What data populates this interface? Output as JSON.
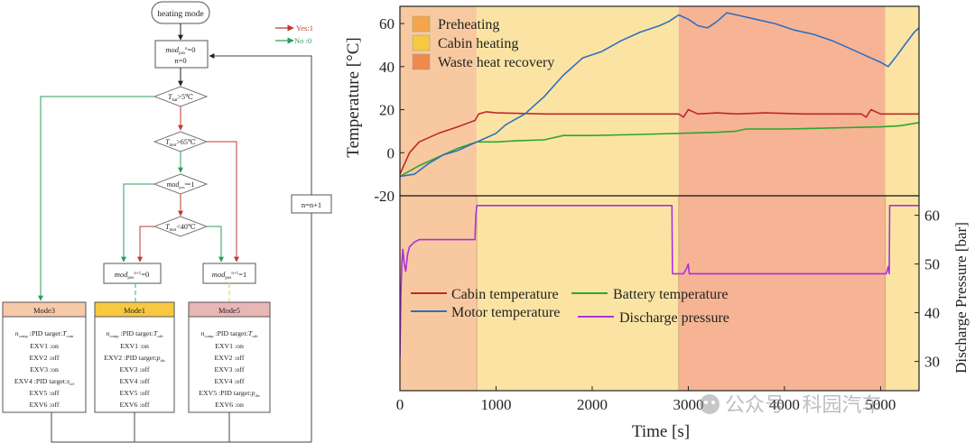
{
  "flowchart": {
    "start": "heating mode",
    "legend": {
      "yes": "Yes:1",
      "no": "No :0",
      "yes_color": "#c0392b",
      "no_color": "#2e9e5b"
    },
    "init": {
      "line1_var": "mod",
      "line1_sub": "pos",
      "line1_sup": "n",
      "line1_val": "=0",
      "line2": "n=0"
    },
    "loop_label": "n=n+1",
    "decisions": {
      "d1": {
        "var": "T",
        "sub": "bat",
        "cond": ">5℃"
      },
      "d2": {
        "var": "T",
        "sub": "mot",
        "cond": ">65℃"
      },
      "d3": {
        "var": "mod",
        "sub": "pos",
        "sup": "n",
        "cond": "=1"
      },
      "d4": {
        "var": "T",
        "sub": "mot",
        "cond": "<40℃"
      }
    },
    "assign0": {
      "var": "mod",
      "sub": "pos",
      "sup": "n+1",
      "val": "=0"
    },
    "assign1": {
      "var": "mod",
      "sub": "pos",
      "sup": "n+1",
      "val": "=1"
    },
    "modes": [
      {
        "title": "Mode3",
        "color": "#f6c9a8",
        "line1": {
          "pre": "n",
          "presub": "comp",
          "text": " :PID target:",
          "t": "T",
          "tsub": "com"
        },
        "rows": [
          "EXV1 :on",
          "EXV2 :off",
          "EXV3 :on"
        ],
        "row4": {
          "text": "EXV4 :PID target:",
          "v": "s",
          "vsub": "ref"
        },
        "rows2": [
          "EXV5 :off",
          "EXV6 :off"
        ]
      },
      {
        "title": "Mode1",
        "color": "#f7c840",
        "line1": {
          "pre": "n",
          "presub": "comp",
          "text": " :PID target:",
          "t": "T",
          "tsub": "cab"
        },
        "rows": [
          "EXV1 :on"
        ],
        "row2": {
          "text": "EXV2 :PID target:",
          "v": "p",
          "vsub": "dis"
        },
        "rows2": [
          "EXV3 :off",
          "EXV4 :off",
          "EXV5 :off",
          "EXV6 :off"
        ]
      },
      {
        "title": "Mode5",
        "color": "#e9b6b6",
        "line1": {
          "pre": "n",
          "presub": "comp",
          "text": " :PID target:",
          "t": "T",
          "tsub": "cab"
        },
        "rows": [
          "EXV1 :on",
          "EXV2 :off",
          "EXV3 :off",
          "EXV4 :off"
        ],
        "row5": {
          "text": "EXV5 :PID target:",
          "v": "p",
          "vsub": "dis"
        },
        "rows2": [
          "EXV6 :on"
        ]
      }
    ]
  },
  "chart_data": {
    "type": "line",
    "xlabel": "Time [s]",
    "ylabel_top": "Temperature [°C]",
    "ylabel_bottom": "Discharge Pressure [bar]",
    "xlim": [
      0,
      5400
    ],
    "x_ticks": [
      0,
      1000,
      2000,
      3000,
      4000,
      5000
    ],
    "top_ylim": [
      -20,
      68
    ],
    "top_ticks": [
      -20,
      0,
      20,
      40,
      60
    ],
    "bottom_ylim": [
      24,
      64
    ],
    "bottom_ticks": [
      30,
      40,
      50,
      60
    ],
    "phases": [
      {
        "name": "Preheating",
        "start": 0,
        "end": 800,
        "color": "#f8c9a0"
      },
      {
        "name": "Cabin heating",
        "start": 800,
        "end": 2900,
        "color": "#fbe4a3"
      },
      {
        "name": "Waste heat recovery",
        "start": 2900,
        "end": 5050,
        "color": "#f6b494"
      },
      {
        "name": "Cabin heating",
        "start": 5050,
        "end": 5400,
        "color": "#fbe4a3"
      }
    ],
    "legend_top": [
      {
        "label": "Preheating",
        "color": "#f6a54a"
      },
      {
        "label": "Cabin heating",
        "color": "#f7c840"
      },
      {
        "label": "Waste heat recovery",
        "color": "#f08a4b"
      }
    ],
    "series": [
      {
        "name": "Cabin temperature",
        "color": "#c0272d",
        "panel": "top",
        "x": [
          0,
          100,
          200,
          400,
          600,
          780,
          820,
          900,
          1000,
          1500,
          2000,
          2500,
          2900,
          2950,
          3000,
          3100,
          3300,
          3500,
          3800,
          4200,
          4600,
          4800,
          4850,
          4900,
          5000,
          5100,
          5400
        ],
        "y": [
          -10,
          0,
          5,
          9,
          12,
          15,
          18,
          19,
          18.5,
          18,
          18,
          18,
          18,
          16.5,
          20,
          18,
          18.5,
          18,
          18.5,
          18,
          18,
          18,
          16.5,
          20,
          18,
          18,
          18
        ]
      },
      {
        "name": "Battery temperature",
        "color": "#2fa62f",
        "panel": "top",
        "x": [
          0,
          200,
          400,
          600,
          800,
          1000,
          1200,
          1500,
          1700,
          2000,
          2500,
          2900,
          3300,
          3500,
          3600,
          4000,
          4500,
          5000,
          5200,
          5400
        ],
        "y": [
          -11,
          -6,
          -2,
          2,
          5,
          5,
          5.5,
          6,
          8,
          8,
          8.5,
          9,
          9.5,
          10,
          11,
          11,
          11.5,
          12,
          12.5,
          14
        ]
      },
      {
        "name": "Motor temperature",
        "color": "#2f6fc0",
        "panel": "top",
        "x": [
          0,
          150,
          300,
          450,
          600,
          750,
          900,
          1000,
          1100,
          1300,
          1500,
          1700,
          1900,
          2100,
          2300,
          2500,
          2700,
          2800,
          2900,
          3000,
          3100,
          3200,
          3300,
          3400,
          3500,
          3700,
          3900,
          4100,
          4300,
          4500,
          4700,
          4900,
          5000,
          5080,
          5150,
          5250,
          5350,
          5400
        ],
        "y": [
          -11,
          -10,
          -5,
          -1,
          1,
          4,
          7,
          9,
          13,
          18,
          26,
          36,
          44,
          47,
          52,
          56,
          59,
          61,
          64,
          62,
          59,
          58,
          61,
          65,
          64,
          62,
          60,
          57,
          55,
          52,
          48,
          44,
          42,
          40,
          44,
          50,
          56,
          58
        ]
      },
      {
        "name": "Discharge pressure",
        "color": "#b02ee0",
        "panel": "bottom",
        "x": [
          0,
          10,
          20,
          30,
          45,
          60,
          80,
          100,
          150,
          200,
          400,
          600,
          780,
          790,
          800,
          1000,
          1500,
          2000,
          2500,
          2800,
          2830,
          2835,
          2900,
          2950,
          2980,
          3000,
          3010,
          3050,
          3500,
          4000,
          4500,
          5000,
          5060,
          5080,
          5090,
          5095,
          5110,
          5200,
          5400
        ],
        "y": [
          31,
          44,
          50,
          53,
          50,
          48.5,
          52,
          53.5,
          54.5,
          55,
          55,
          55,
          55,
          60,
          62,
          62,
          62,
          62,
          62,
          62,
          62,
          48,
          48,
          48,
          49,
          50,
          48,
          48,
          48,
          48,
          48,
          48,
          48,
          49.5,
          48,
          62,
          62,
          62,
          62
        ]
      }
    ],
    "legend_bottom": [
      {
        "label": "Cabin temperature",
        "color": "#c0272d"
      },
      {
        "label": "Battery temperature",
        "color": "#2fa62f"
      },
      {
        "label": "Motor temperature",
        "color": "#2f6fc0"
      },
      {
        "label": "Discharge pressure",
        "color": "#b02ee0"
      }
    ]
  },
  "watermark": {
    "text": "公众号 · 科园汽车"
  }
}
